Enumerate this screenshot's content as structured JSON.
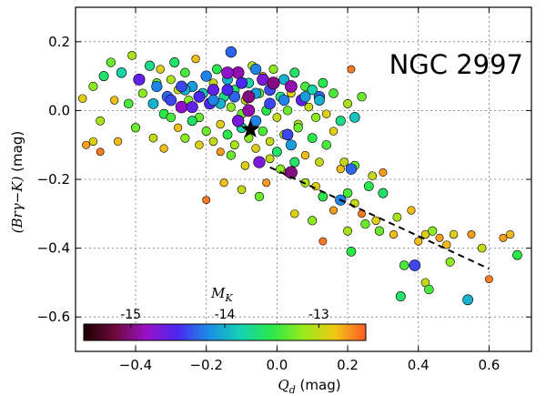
{
  "chart_data": {
    "type": "scatter",
    "title": "NGC 2997",
    "xlabel": "Q_d (mag)",
    "ylabel": "(Brγ−K) (mag)",
    "xlim": [
      -0.57,
      0.72
    ],
    "ylim": [
      -0.7,
      0.3
    ],
    "xticks": [
      -0.4,
      -0.2,
      0.0,
      0.2,
      0.4,
      0.6
    ],
    "xtick_labels": [
      "−0.4",
      "−0.2",
      "0.0",
      "0.2",
      "0.4",
      "0.6"
    ],
    "yticks": [
      0.2,
      0.0,
      -0.2,
      -0.4,
      -0.6
    ],
    "ytick_labels": [
      "0.2",
      "0.0",
      "−0.2",
      "−0.4",
      "−0.6"
    ],
    "grid": true,
    "colorbar": {
      "label": "M_K",
      "range": [
        -15.5,
        -12.5
      ],
      "ticks": [
        -15,
        -14,
        -13
      ],
      "tick_labels": [
        "-15",
        "-14",
        "-13"
      ],
      "colors": [
        "#1a0000",
        "#6e0a3c",
        "#9a10c8",
        "#4a28f0",
        "#1a8ee6",
        "#16d2b4",
        "#2ae84a",
        "#96ea1c",
        "#f0c814",
        "#ff5a28"
      ]
    },
    "fit_line": {
      "style": "dashed",
      "x": [
        -0.02,
        0.6
      ],
      "y": [
        -0.165,
        -0.46
      ]
    },
    "highlight": {
      "marker": "star",
      "x": -0.075,
      "y": -0.055
    },
    "points": [
      [
        -0.55,
        0.035,
        -12.9
      ],
      [
        -0.52,
        0.07,
        -13.2
      ],
      [
        -0.49,
        0.1,
        -13.6
      ],
      [
        -0.47,
        0.14,
        -13.3
      ],
      [
        -0.5,
        -0.03,
        -13.1
      ],
      [
        -0.46,
        0.03,
        -12.8
      ],
      [
        -0.44,
        0.11,
        -13.8
      ],
      [
        -0.42,
        0.02,
        -13.4
      ],
      [
        -0.41,
        0.16,
        -13.1
      ],
      [
        -0.39,
        0.09,
        -14.6
      ],
      [
        -0.38,
        0.05,
        -13.2
      ],
      [
        -0.36,
        0.13,
        -13.7
      ],
      [
        -0.35,
        0.02,
        -14.0
      ],
      [
        -0.34,
        0.08,
        -13.3
      ],
      [
        -0.33,
        0.12,
        -12.9
      ],
      [
        -0.32,
        -0.01,
        -13.5
      ],
      [
        -0.31,
        0.04,
        -14.3
      ],
      [
        -0.3,
        0.09,
        -13.1
      ],
      [
        -0.29,
        0.14,
        -13.6
      ],
      [
        -0.28,
        0.06,
        -13.0
      ],
      [
        -0.27,
        0.01,
        -14.8
      ],
      [
        -0.26,
        0.11,
        -13.4
      ],
      [
        -0.25,
        0.03,
        -13.2
      ],
      [
        -0.24,
        0.07,
        -14.1
      ],
      [
        -0.23,
        0.15,
        -12.8
      ],
      [
        -0.22,
        -0.02,
        -13.3
      ],
      [
        -0.21,
        0.05,
        -13.9
      ],
      [
        -0.2,
        0.1,
        -13.1
      ],
      [
        -0.19,
        0.02,
        -14.5
      ],
      [
        -0.18,
        0.08,
        -13.0
      ],
      [
        -0.17,
        0.12,
        -13.5
      ],
      [
        -0.16,
        -0.04,
        -12.9
      ],
      [
        -0.15,
        0.04,
        -13.7
      ],
      [
        -0.14,
        0.09,
        -14.0
      ],
      [
        -0.13,
        0.01,
        -13.2
      ],
      [
        -0.12,
        0.06,
        -13.6
      ],
      [
        -0.11,
        0.11,
        -14.9
      ],
      [
        -0.1,
        -0.01,
        -13.3
      ],
      [
        -0.09,
        0.03,
        -13.0
      ],
      [
        -0.08,
        0.08,
        -13.8
      ],
      [
        -0.07,
        0.13,
        -13.1
      ],
      [
        -0.06,
        -0.03,
        -14.2
      ],
      [
        -0.05,
        0.05,
        -13.4
      ],
      [
        -0.04,
        0.1,
        -12.8
      ],
      [
        -0.03,
        0.0,
        -13.5
      ],
      [
        -0.02,
        0.06,
        -14.4
      ],
      [
        -0.01,
        0.12,
        -13.2
      ],
      [
        0.0,
        -0.02,
        -13.0
      ],
      [
        0.01,
        0.04,
        -13.7
      ],
      [
        0.02,
        0.09,
        -14.0
      ],
      [
        0.03,
        0.0,
        -13.3
      ],
      [
        0.04,
        0.05,
        -12.9
      ],
      [
        0.05,
        0.11,
        -13.6
      ],
      [
        0.06,
        -0.04,
        -13.1
      ],
      [
        0.07,
        0.03,
        -14.6
      ],
      [
        0.08,
        0.07,
        -13.4
      ],
      [
        0.09,
        0.01,
        -13.0
      ],
      [
        0.1,
        0.06,
        -13.8
      ],
      [
        0.11,
        -0.02,
        -13.2
      ],
      [
        0.12,
        0.04,
        -14.3
      ],
      [
        0.13,
        0.08,
        -13.5
      ],
      [
        0.14,
        -0.01,
        -12.9
      ],
      [
        0.16,
        0.05,
        -13.4
      ],
      [
        0.18,
        -0.03,
        -13.7
      ],
      [
        0.2,
        0.02,
        -13.1
      ],
      [
        0.22,
        -0.02,
        -13.9
      ],
      [
        0.24,
        0.04,
        -13.3
      ],
      [
        0.21,
        0.12,
        -12.6
      ],
      [
        -0.3,
        -0.02,
        -13.4
      ],
      [
        -0.28,
        -0.05,
        -12.8
      ],
      [
        -0.26,
        -0.08,
        -13.2
      ],
      [
        -0.24,
        -0.03,
        -13.6
      ],
      [
        -0.22,
        -0.1,
        -12.9
      ],
      [
        -0.2,
        -0.06,
        -13.3
      ],
      [
        -0.18,
        -0.09,
        -13.0
      ],
      [
        -0.16,
        -0.12,
        -12.7
      ],
      [
        -0.14,
        -0.07,
        -13.5
      ],
      [
        -0.12,
        -0.1,
        -13.1
      ],
      [
        -0.1,
        -0.05,
        -13.8
      ],
      [
        -0.08,
        -0.08,
        -13.2
      ],
      [
        -0.06,
        -0.11,
        -12.9
      ],
      [
        -0.04,
        -0.06,
        -13.4
      ],
      [
        -0.02,
        -0.09,
        -13.0
      ],
      [
        0.0,
        -0.12,
        -13.6
      ],
      [
        0.02,
        -0.07,
        -13.1
      ],
      [
        0.04,
        -0.1,
        -14.1
      ],
      [
        0.06,
        -0.05,
        -13.3
      ],
      [
        0.08,
        -0.13,
        -12.8
      ],
      [
        0.1,
        -0.08,
        -13.5
      ],
      [
        0.12,
        -0.15,
        -13.0
      ],
      [
        0.14,
        -0.1,
        -13.4
      ],
      [
        0.16,
        -0.06,
        -12.9
      ],
      [
        -0.35,
        -0.08,
        -13.0
      ],
      [
        -0.4,
        -0.05,
        -13.3
      ],
      [
        -0.45,
        -0.09,
        -12.8
      ],
      [
        -0.52,
        -0.09,
        -12.9
      ],
      [
        -0.54,
        -0.1,
        -12.7
      ],
      [
        -0.5,
        -0.12,
        -12.6
      ],
      [
        -0.32,
        -0.11,
        -12.8
      ],
      [
        -0.05,
        -0.15,
        -14.7
      ],
      [
        -0.02,
        -0.14,
        -13.0
      ],
      [
        0.01,
        -0.17,
        -13.2
      ],
      [
        0.03,
        -0.18,
        -12.8
      ],
      [
        0.05,
        -0.15,
        -13.6
      ],
      [
        -0.13,
        -0.13,
        -13.3
      ],
      [
        -0.09,
        -0.16,
        -12.9
      ],
      [
        0.04,
        -0.18,
        -15.0
      ],
      [
        0.08,
        -0.21,
        -13.1
      ],
      [
        0.11,
        -0.22,
        -12.9
      ],
      [
        0.13,
        -0.25,
        -13.5
      ],
      [
        0.18,
        -0.17,
        -12.8
      ],
      [
        0.22,
        -0.16,
        -13.3
      ],
      [
        0.16,
        -0.29,
        -12.7
      ],
      [
        0.18,
        -0.26,
        -14.2
      ],
      [
        0.2,
        -0.24,
        -13.4
      ],
      [
        0.22,
        -0.27,
        -13.0
      ],
      [
        0.24,
        -0.3,
        -12.6
      ],
      [
        0.2,
        -0.35,
        -13.1
      ],
      [
        0.25,
        -0.33,
        -13.3
      ],
      [
        0.28,
        -0.32,
        -12.9
      ],
      [
        0.27,
        -0.19,
        -13.0
      ],
      [
        0.3,
        -0.18,
        -12.7
      ],
      [
        0.26,
        -0.22,
        -13.5
      ],
      [
        -0.2,
        -0.26,
        -12.6
      ],
      [
        -0.15,
        -0.21,
        -12.8
      ],
      [
        -0.1,
        -0.23,
        -13.0
      ],
      [
        -0.05,
        -0.25,
        -13.3
      ],
      [
        -0.03,
        -0.21,
        -12.7
      ],
      [
        0.05,
        -0.3,
        -12.9
      ],
      [
        0.1,
        -0.32,
        -13.2
      ],
      [
        0.13,
        -0.38,
        -12.6
      ],
      [
        0.21,
        -0.41,
        -13.5
      ],
      [
        0.3,
        -0.24,
        -13.6
      ],
      [
        0.33,
        -0.36,
        -12.8
      ],
      [
        0.36,
        -0.45,
        -13.4
      ],
      [
        0.4,
        -0.38,
        -12.8
      ],
      [
        0.42,
        -0.36,
        -12.9
      ],
      [
        0.44,
        -0.35,
        -13.2
      ],
      [
        0.46,
        -0.37,
        -12.7
      ],
      [
        0.48,
        -0.39,
        -12.8
      ],
      [
        0.5,
        -0.36,
        -12.9
      ],
      [
        0.55,
        -0.36,
        -12.7
      ],
      [
        0.58,
        -0.4,
        -13.0
      ],
      [
        0.38,
        -0.29,
        -12.8
      ],
      [
        0.34,
        -0.31,
        -13.1
      ],
      [
        0.35,
        -0.54,
        -13.6
      ],
      [
        0.39,
        -0.45,
        -14.4
      ],
      [
        0.42,
        -0.5,
        -13.0
      ],
      [
        0.43,
        -0.52,
        -13.4
      ],
      [
        0.49,
        -0.44,
        -13.2
      ],
      [
        0.54,
        -0.55,
        -14.0
      ],
      [
        0.6,
        -0.49,
        -12.6
      ],
      [
        0.64,
        -0.37,
        -12.7
      ],
      [
        0.66,
        -0.36,
        -12.8
      ],
      [
        0.68,
        -0.42,
        -13.5
      ],
      [
        0.29,
        -0.35,
        -13.3
      ],
      [
        -0.2,
        0.1,
        -14.2
      ],
      [
        -0.18,
        0.06,
        -14.6
      ],
      [
        -0.16,
        0.02,
        -14.0
      ],
      [
        -0.14,
        0.11,
        -14.8
      ],
      [
        -0.12,
        0.04,
        -14.3
      ],
      [
        -0.1,
        0.08,
        -14.5
      ],
      [
        -0.08,
        0.0,
        -14.9
      ],
      [
        -0.06,
        0.05,
        -14.1
      ],
      [
        -0.04,
        0.09,
        -14.7
      ],
      [
        -0.02,
        0.02,
        -14.4
      ],
      [
        -0.06,
        0.12,
        -14.2
      ],
      [
        -0.22,
        0.04,
        -14.5
      ],
      [
        -0.26,
        0.06,
        -14.0
      ],
      [
        -0.3,
        0.03,
        -14.4
      ],
      [
        -0.34,
        0.07,
        -14.2
      ],
      [
        -0.13,
        0.17,
        -14.3
      ],
      [
        -0.24,
        0.01,
        -14.6
      ],
      [
        -0.08,
        0.04,
        -15.0
      ],
      [
        0.02,
        0.03,
        -14.2
      ],
      [
        -0.11,
        -0.03,
        -14.7
      ],
      [
        0.04,
        0.07,
        -14.9
      ],
      [
        0.08,
        0.04,
        -14.1
      ],
      [
        0.12,
        0.03,
        -14.0
      ],
      [
        0.21,
        -0.17,
        -14.3
      ],
      [
        0.19,
        -0.15,
        -13.0
      ],
      [
        0.03,
        -0.07,
        -14.4
      ],
      [
        -0.14,
        0.06,
        -14.5
      ],
      [
        -0.18,
        0.03,
        -14.2
      ],
      [
        -0.27,
        0.07,
        -14.4
      ],
      [
        -0.01,
        0.08,
        -15.0
      ]
    ]
  }
}
